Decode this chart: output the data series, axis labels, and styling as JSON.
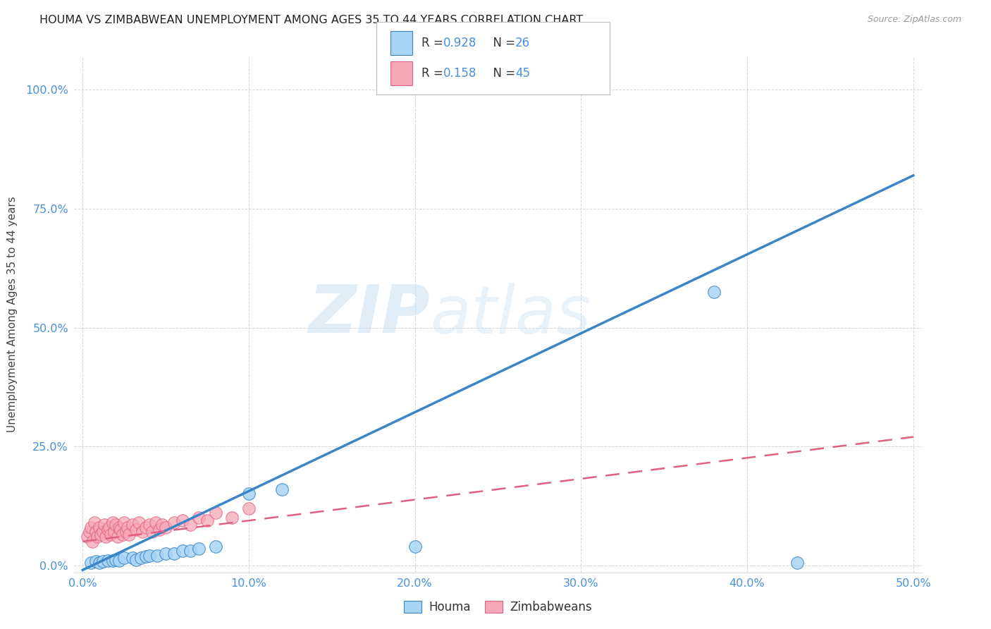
{
  "title": "HOUMA VS ZIMBABWEAN UNEMPLOYMENT AMONG AGES 35 TO 44 YEARS CORRELATION CHART",
  "source": "Source: ZipAtlas.com",
  "ylabel": "Unemployment Among Ages 35 to 44 years",
  "xlim": [
    -0.005,
    0.505
  ],
  "ylim": [
    -0.015,
    1.07
  ],
  "xticks": [
    0.0,
    0.1,
    0.2,
    0.3,
    0.4,
    0.5
  ],
  "yticks": [
    0.0,
    0.25,
    0.5,
    0.75,
    1.0
  ],
  "xticklabels": [
    "0.0%",
    "10.0%",
    "20.0%",
    "30.0%",
    "40.0%",
    "50.0%"
  ],
  "yticklabels": [
    "0.0%",
    "25.0%",
    "50.0%",
    "75.0%",
    "100.0%"
  ],
  "houma_R": 0.928,
  "houma_N": 26,
  "zimbabwe_R": 0.158,
  "zimbabwe_N": 45,
  "houma_color": "#A8D4F5",
  "zimbabwe_color": "#F5A8B8",
  "houma_line_color": "#3A85C8",
  "zimbabwe_line_color": "#E06080",
  "legend_labels": [
    "Houma",
    "Zimbabweans"
  ],
  "axis_color": "#4A90D9",
  "grid_color": "#cccccc",
  "houma_line_x0": 0.0,
  "houma_line_y0": -0.01,
  "houma_line_x1": 0.5,
  "houma_line_y1": 0.82,
  "zimbabwe_line_x0": 0.0,
  "zimbabwe_line_y0": 0.05,
  "zimbabwe_line_x1": 0.5,
  "zimbabwe_line_y1": 0.27,
  "houma_x": [
    0.005,
    0.008,
    0.01,
    0.012,
    0.015,
    0.018,
    0.02,
    0.022,
    0.025,
    0.03,
    0.032,
    0.035,
    0.038,
    0.04,
    0.045,
    0.05,
    0.055,
    0.06,
    0.065,
    0.07,
    0.08,
    0.1,
    0.12,
    0.2,
    0.38,
    0.43
  ],
  "houma_y": [
    0.005,
    0.008,
    0.005,
    0.008,
    0.01,
    0.01,
    0.012,
    0.01,
    0.015,
    0.015,
    0.012,
    0.015,
    0.018,
    0.02,
    0.02,
    0.025,
    0.025,
    0.03,
    0.03,
    0.035,
    0.04,
    0.15,
    0.16,
    0.04,
    0.575,
    0.005
  ],
  "zimbabwe_x": [
    0.003,
    0.004,
    0.005,
    0.006,
    0.007,
    0.008,
    0.009,
    0.01,
    0.011,
    0.012,
    0.013,
    0.014,
    0.015,
    0.016,
    0.017,
    0.018,
    0.019,
    0.02,
    0.021,
    0.022,
    0.023,
    0.024,
    0.025,
    0.026,
    0.027,
    0.028,
    0.03,
    0.032,
    0.034,
    0.036,
    0.038,
    0.04,
    0.042,
    0.044,
    0.046,
    0.048,
    0.05,
    0.055,
    0.06,
    0.065,
    0.07,
    0.075,
    0.08,
    0.09,
    0.1
  ],
  "zimbabwe_y": [
    0.06,
    0.07,
    0.08,
    0.05,
    0.09,
    0.07,
    0.06,
    0.08,
    0.065,
    0.07,
    0.085,
    0.06,
    0.075,
    0.08,
    0.065,
    0.09,
    0.07,
    0.085,
    0.06,
    0.08,
    0.075,
    0.065,
    0.09,
    0.07,
    0.08,
    0.065,
    0.085,
    0.075,
    0.09,
    0.07,
    0.08,
    0.085,
    0.07,
    0.09,
    0.075,
    0.085,
    0.08,
    0.09,
    0.095,
    0.085,
    0.1,
    0.095,
    0.11,
    0.1,
    0.12
  ]
}
